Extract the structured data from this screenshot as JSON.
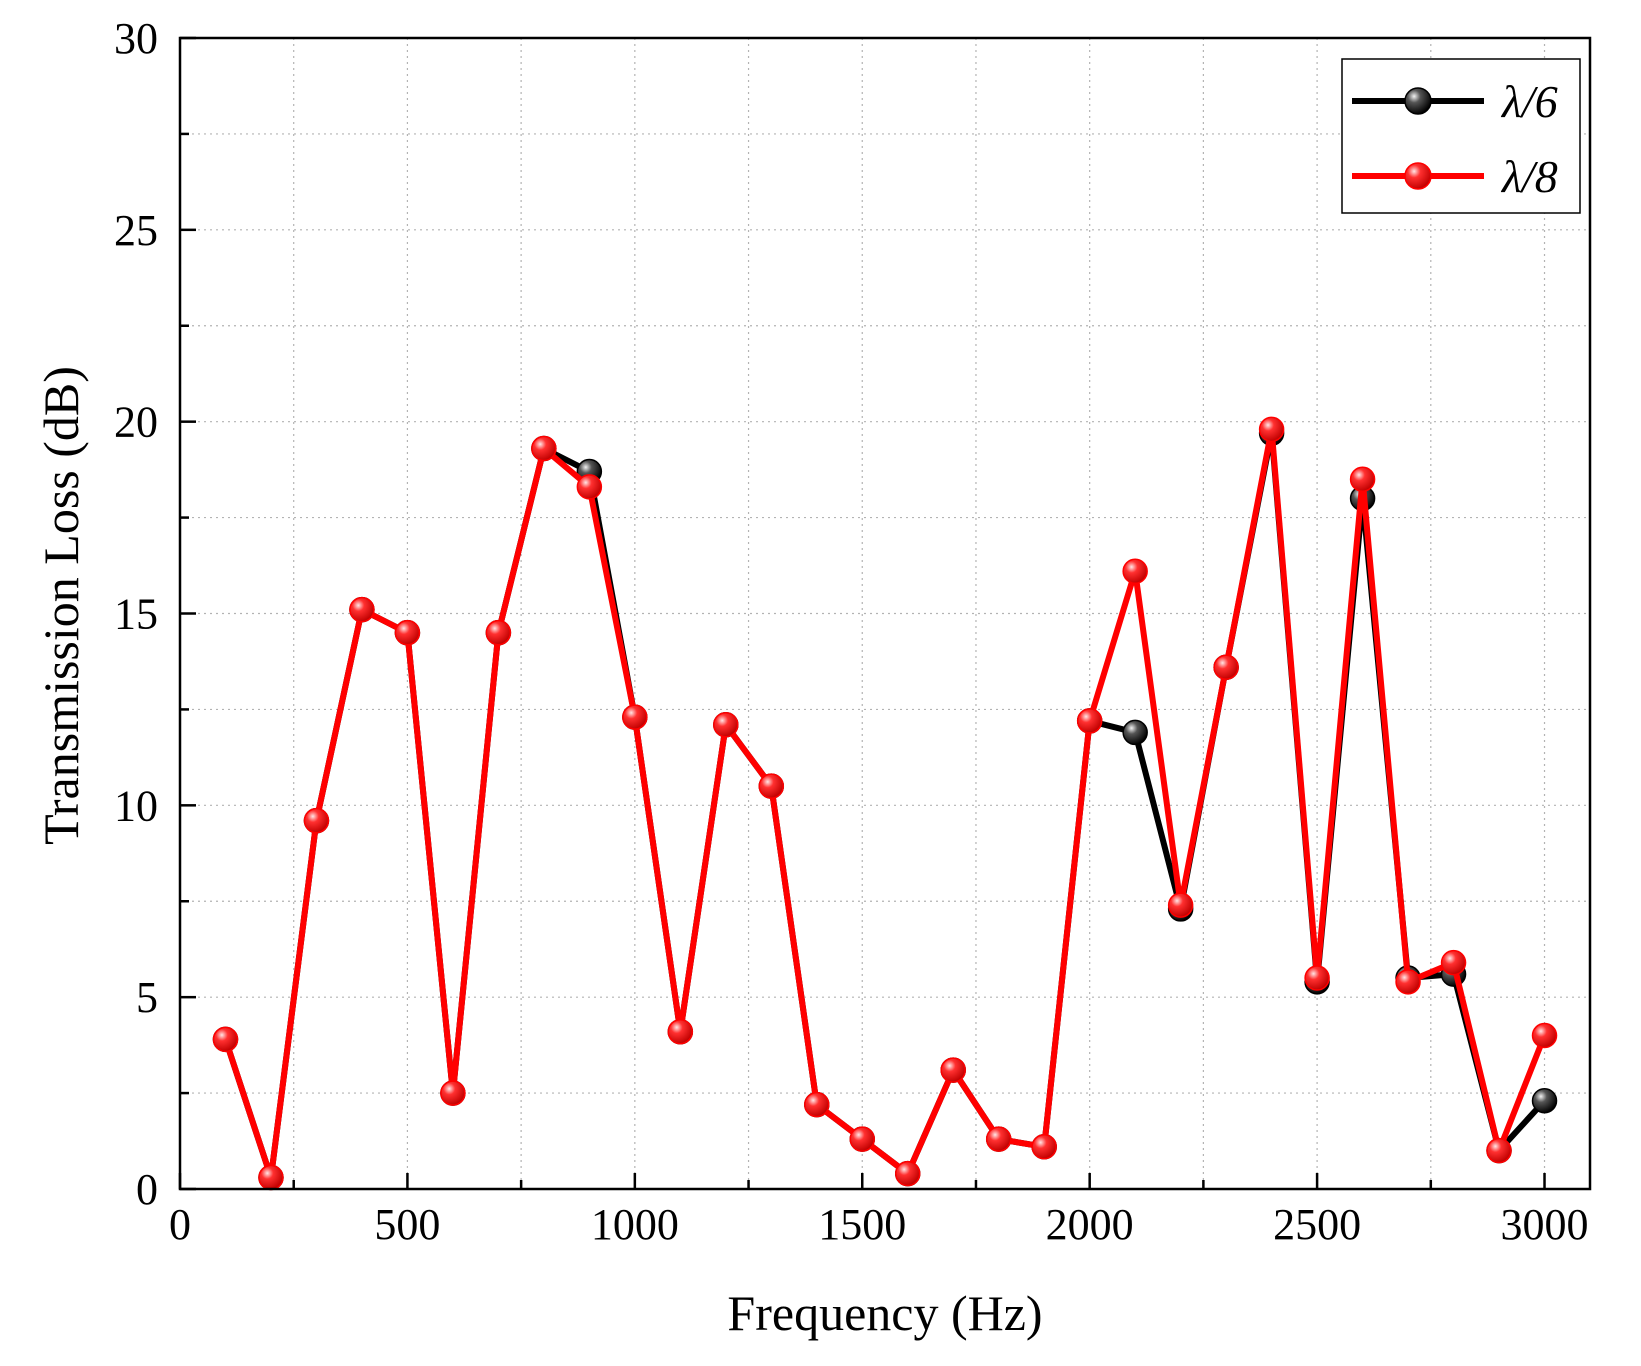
{
  "chart_data": {
    "type": "line",
    "title": "",
    "xlabel": "Frequency (Hz)",
    "ylabel": "Transmission Loss (dB)",
    "xlim": [
      0,
      3100
    ],
    "ylim": [
      0,
      30
    ],
    "xticks": [
      0,
      500,
      1000,
      1500,
      2000,
      2500,
      3000
    ],
    "yticks": [
      0,
      5,
      10,
      15,
      20,
      25,
      30
    ],
    "grid": true,
    "legend_position": "top-right",
    "x": [
      100,
      200,
      300,
      400,
      500,
      600,
      700,
      800,
      900,
      1000,
      1100,
      1200,
      1300,
      1400,
      1500,
      1600,
      1700,
      1800,
      1900,
      2000,
      2100,
      2200,
      2300,
      2400,
      2500,
      2600,
      2700,
      2800,
      2900,
      3000
    ],
    "series": [
      {
        "name": "λ/6",
        "color": "#000000",
        "values": [
          3.9,
          0.3,
          9.6,
          15.1,
          14.5,
          2.5,
          14.5,
          19.3,
          18.7,
          12.3,
          4.1,
          12.1,
          10.5,
          2.2,
          1.3,
          0.4,
          3.1,
          1.3,
          1.1,
          12.2,
          11.9,
          7.3,
          13.6,
          19.7,
          5.4,
          18.0,
          5.5,
          5.6,
          1.0,
          2.3
        ]
      },
      {
        "name": "λ/8",
        "color": "#ff0000",
        "values": [
          3.9,
          0.3,
          9.6,
          15.1,
          14.5,
          2.5,
          14.5,
          19.3,
          18.3,
          12.3,
          4.1,
          12.1,
          10.5,
          2.2,
          1.3,
          0.4,
          3.1,
          1.3,
          1.1,
          12.2,
          16.1,
          7.4,
          13.6,
          19.8,
          5.5,
          18.5,
          5.4,
          5.9,
          1.0,
          4.0
        ]
      }
    ]
  }
}
